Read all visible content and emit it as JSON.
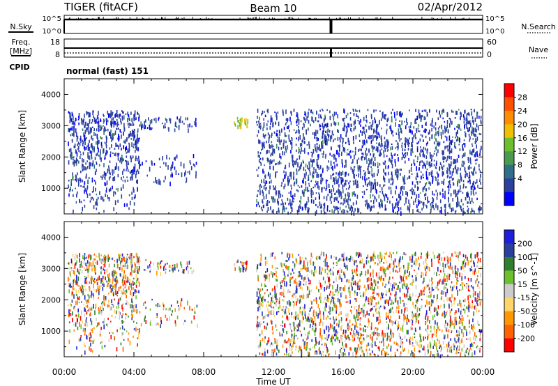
{
  "header": {
    "radar": "TIGER (fitACF)",
    "beam": "Beam 10",
    "date": "02/Apr/2012"
  },
  "noise_panel": {
    "left_label": "N.Sky",
    "right_label": "N.Search",
    "left_ticks": [
      "10^5",
      "10^0"
    ],
    "right_ticks": [
      "10^5",
      "10^0"
    ]
  },
  "freq_panel": {
    "left_label_1": "Freq.",
    "left_label_2": "[MHz]",
    "right_label": "Nave",
    "left_ticks": [
      "18",
      "8"
    ],
    "right_ticks": [
      "60",
      "0"
    ]
  },
  "cpid": {
    "label": "CPID",
    "value": "normal (fast) 151"
  },
  "colors": {
    "power": [
      "#0000ff",
      "#2b3f9e",
      "#2f6f8a",
      "#4a9a52",
      "#6cc02d",
      "#f0c000",
      "#ff8c00",
      "#ff5000",
      "#ff0000"
    ],
    "velocity": [
      "#ff0000",
      "#ff6200",
      "#ff9800",
      "#ffd46a",
      "#cccccc",
      "#6cc02d",
      "#2f7f2f",
      "#2b3f9e",
      "#1e1edc"
    ]
  },
  "chart_data": [
    {
      "type": "heatmap",
      "name": "power",
      "ylabel": "Slant Range [km]",
      "ylim": [
        180,
        4500
      ],
      "y_ticks": [
        "1000",
        "2000",
        "3000",
        "4000"
      ],
      "y_tick_values": [
        1000,
        2000,
        3000,
        4000
      ],
      "colorbar_label": "Power [dB]",
      "colorbar_ticks": [
        "4",
        "8",
        "12",
        "16",
        "20",
        "24",
        "28"
      ],
      "colorbar_values": [
        4,
        8,
        12,
        16,
        20,
        24,
        28
      ],
      "colorbar_range": [
        0,
        30
      ]
    },
    {
      "type": "heatmap",
      "name": "velocity",
      "ylabel": "Slant Range [km]",
      "ylim": [
        180,
        4500
      ],
      "y_ticks": [
        "1000",
        "2000",
        "3000",
        "4000"
      ],
      "y_tick_values": [
        1000,
        2000,
        3000,
        4000
      ],
      "colorbar_label": "Velocity [m s^-1]",
      "colorbar_ticks": [
        "200",
        "100",
        "50",
        "15",
        "-15",
        "-50",
        "-100",
        "-200"
      ],
      "colorbar_classes": [
        "<-200",
        "-200..-100",
        "-100..-50",
        "-50..-15",
        "-15..15",
        "15..50",
        "50..100",
        "100..200",
        ">200"
      ]
    }
  ],
  "x_axis": {
    "xlabel": "Time UT",
    "ticks": [
      "00:00",
      "04:00",
      "08:00",
      "12:00",
      "16:00",
      "20:00",
      "00:00"
    ],
    "tick_hours": [
      0,
      4,
      8,
      12,
      16,
      20,
      24
    ]
  }
}
